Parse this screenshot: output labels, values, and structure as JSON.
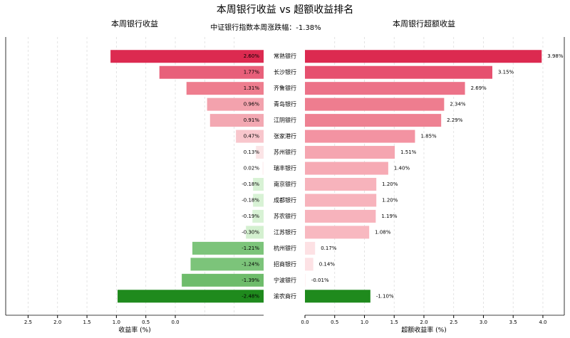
{
  "title": "本周银行收益 vs 超额收益排名",
  "annotation": "中证银行指数本周涨跌幅：-1.38%",
  "chart_data": [
    {
      "type": "bar",
      "orientation": "horizontal",
      "title": "本周银行收益",
      "xlabel": "收益率 (%)",
      "categories": [
        "常熟银行",
        "长沙银行",
        "齐鲁银行",
        "青岛银行",
        "江阴银行",
        "张家港行",
        "苏州银行",
        "瑞丰银行",
        "南京银行",
        "成都银行",
        "苏农银行",
        "江苏银行",
        "杭州银行",
        "招商银行",
        "宁波银行",
        "渝农商行"
      ],
      "values": [
        2.6,
        1.77,
        1.31,
        0.96,
        0.91,
        0.47,
        0.13,
        0.02,
        -0.18,
        -0.18,
        -0.19,
        -0.3,
        -1.21,
        -1.24,
        -1.39,
        -2.48
      ],
      "value_labels": [
        "2.60%",
        "1.77%",
        "1.31%",
        "0.96%",
        "0.91%",
        "0.47%",
        "0.13%",
        "0.02%",
        "-0.18%",
        "-0.18%",
        "-0.19%",
        "-0.30%",
        "-1.21%",
        "-1.24%",
        "-1.39%",
        "-2.48%"
      ],
      "colors": [
        "#dc2a50",
        "#e8607a",
        "#ee7d8e",
        "#f3a2ad",
        "#f3a8b2",
        "#f8c6cc",
        "#fbe4e6",
        "#fdf1f2",
        "#d8f2d5",
        "#d8f2d5",
        "#d8f2d5",
        "#d4f0d0",
        "#7cc47a",
        "#7cc47a",
        "#6ebc6b",
        "#1f8a1d"
      ],
      "x_inverted": true,
      "xlim": [
        0,
        4.38
      ],
      "xticks": [
        {
          "value": 4,
          "label": "2.5"
        },
        {
          "value": 3.5,
          "label": "2.0"
        },
        {
          "value": 3,
          "label": "1.5"
        },
        {
          "value": 2.5,
          "label": "1.0"
        },
        {
          "value": 2,
          "label": "0.5"
        },
        {
          "value": 1.5,
          "label": "0.0"
        }
      ],
      "xgrid": [
        0.5,
        1,
        1.5,
        2,
        2.5,
        3,
        3.5,
        4
      ]
    },
    {
      "type": "bar",
      "orientation": "horizontal",
      "title": "本周银行超额收益",
      "xlabel": "超额收益率 (%)",
      "values": [
        3.98,
        3.15,
        2.69,
        2.34,
        2.29,
        1.85,
        1.51,
        1.4,
        1.2,
        1.2,
        1.19,
        1.08,
        0.17,
        0.14,
        -0.01,
        -1.1
      ],
      "value_labels": [
        "3.98%",
        "3.15%",
        "2.69%",
        "2.34%",
        "2.29%",
        "1.85%",
        "1.51%",
        "1.40%",
        "1.20%",
        "1.20%",
        "1.19%",
        "1.08%",
        "0.17%",
        "0.14%",
        "-0.01%",
        "-1.10%"
      ],
      "colors": [
        "#dc2a50",
        "#e6506f",
        "#ec7288",
        "#ee7d8f",
        "#ee8192",
        "#f393a2",
        "#f5a5b0",
        "#f6aab4",
        "#f7b3bc",
        "#f7b3bc",
        "#f7b3bc",
        "#f8b8c0",
        "#fde1e4",
        "#fde2e5",
        "#fff0f1",
        "#1f8a1d"
      ],
      "x_inverted": false,
      "xlim": [
        0,
        4.36
      ],
      "xticks": [
        {
          "value": 0,
          "label": "0.0"
        },
        {
          "value": 0.5,
          "label": "0.5"
        },
        {
          "value": 1,
          "label": "1.0"
        },
        {
          "value": 1.5,
          "label": "1.5"
        },
        {
          "value": 2,
          "label": "2.0"
        },
        {
          "value": 2.5,
          "label": "2.5"
        },
        {
          "value": 3,
          "label": "3.0"
        },
        {
          "value": 3.5,
          "label": "3.5"
        },
        {
          "value": 4,
          "label": "4.0"
        }
      ],
      "xgrid": [
        0.5,
        1,
        1.5,
        2,
        2.5,
        3,
        3.5,
        4
      ]
    }
  ]
}
